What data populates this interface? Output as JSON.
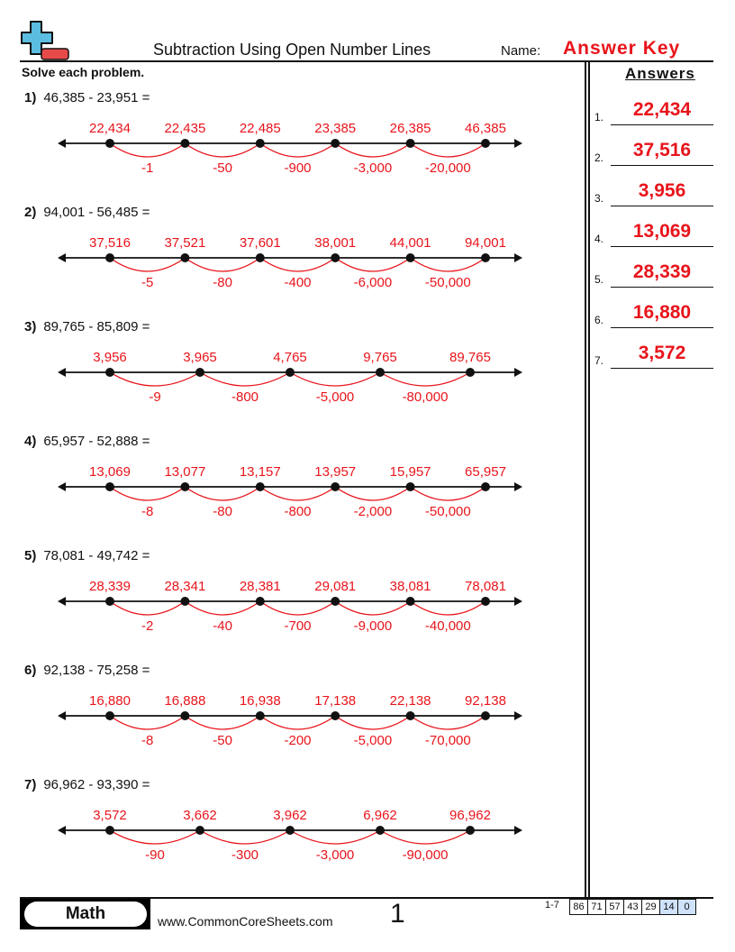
{
  "header": {
    "title": "Subtraction Using Open Number Lines",
    "name_label": "Name:",
    "name_value": "Answer Key"
  },
  "instructions": "Solve each problem.",
  "answers_heading": "Answers",
  "colors": {
    "accent": "#e8141b",
    "logo_plus": "#5bbde0",
    "logo_minus": "#e84a4a"
  },
  "problems": [
    {
      "number": "1)",
      "expression": "46,385 - 23,951 =",
      "points": [
        "22,434",
        "22,435",
        "22,485",
        "23,385",
        "26,385",
        "46,385"
      ],
      "jumps": [
        "-1",
        "-50",
        "-900",
        "-3,000",
        "-20,000"
      ]
    },
    {
      "number": "2)",
      "expression": "94,001 - 56,485 =",
      "points": [
        "37,516",
        "37,521",
        "37,601",
        "38,001",
        "44,001",
        "94,001"
      ],
      "jumps": [
        "-5",
        "-80",
        "-400",
        "-6,000",
        "-50,000"
      ]
    },
    {
      "number": "3)",
      "expression": "89,765 - 85,809 =",
      "points": [
        "3,956",
        "3,965",
        "4,765",
        "9,765",
        "89,765"
      ],
      "jumps": [
        "-9",
        "-800",
        "-5,000",
        "-80,000"
      ]
    },
    {
      "number": "4)",
      "expression": "65,957 - 52,888 =",
      "points": [
        "13,069",
        "13,077",
        "13,157",
        "13,957",
        "15,957",
        "65,957"
      ],
      "jumps": [
        "-8",
        "-80",
        "-800",
        "-2,000",
        "-50,000"
      ]
    },
    {
      "number": "5)",
      "expression": "78,081 - 49,742 =",
      "points": [
        "28,339",
        "28,341",
        "28,381",
        "29,081",
        "38,081",
        "78,081"
      ],
      "jumps": [
        "-2",
        "-40",
        "-700",
        "-9,000",
        "-40,000"
      ]
    },
    {
      "number": "6)",
      "expression": "92,138 - 75,258 =",
      "points": [
        "16,880",
        "16,888",
        "16,938",
        "17,138",
        "22,138",
        "92,138"
      ],
      "jumps": [
        "-8",
        "-50",
        "-200",
        "-5,000",
        "-70,000"
      ]
    },
    {
      "number": "7)",
      "expression": "96,962 - 93,390 =",
      "points": [
        "3,572",
        "3,662",
        "3,962",
        "6,962",
        "96,962"
      ],
      "jumps": [
        "-90",
        "-300",
        "-3,000",
        "-90,000"
      ]
    }
  ],
  "answers": [
    {
      "number": "1.",
      "value": "22,434"
    },
    {
      "number": "2.",
      "value": "37,516"
    },
    {
      "number": "3.",
      "value": "3,956"
    },
    {
      "number": "4.",
      "value": "13,069"
    },
    {
      "number": "5.",
      "value": "28,339"
    },
    {
      "number": "6.",
      "value": "16,880"
    },
    {
      "number": "7.",
      "value": "3,572"
    }
  ],
  "footer": {
    "subject": "Math",
    "website": "www.CommonCoreSheets.com",
    "page_number": "1",
    "score_label": "1-7",
    "scores": [
      "86",
      "71",
      "57",
      "43",
      "29",
      "14",
      "0"
    ]
  }
}
